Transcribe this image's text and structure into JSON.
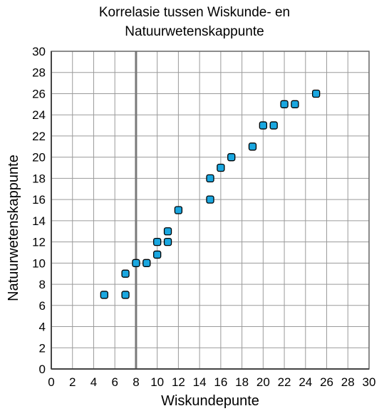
{
  "chart_data": {
    "type": "scatter",
    "title_lines": [
      "Korrelasie tussen Wiskunde- en",
      "Natuurwetenskappunte"
    ],
    "xlabel": "Wiskundepunte",
    "ylabel": "Natuurwetenskappunte",
    "xlim": [
      0,
      30
    ],
    "ylim": [
      0,
      30
    ],
    "xticks": [
      "0",
      "2",
      "4",
      "6",
      "8",
      "10",
      "12",
      "14",
      "16",
      "18",
      "20",
      "22",
      "24",
      "26",
      "28",
      "30"
    ],
    "yticks": [
      "0",
      "2",
      "4",
      "6",
      "8",
      "10",
      "12",
      "14",
      "16",
      "18",
      "20",
      "22",
      "24",
      "26",
      "28",
      "30"
    ],
    "grid": true,
    "reference_line_x": 8,
    "point_color": "#1aa7e0",
    "points": [
      {
        "x": 5,
        "y": 7
      },
      {
        "x": 7,
        "y": 7
      },
      {
        "x": 7,
        "y": 9
      },
      {
        "x": 8,
        "y": 10
      },
      {
        "x": 9,
        "y": 10
      },
      {
        "x": 10,
        "y": 10.8
      },
      {
        "x": 10,
        "y": 12
      },
      {
        "x": 11,
        "y": 12
      },
      {
        "x": 11,
        "y": 13
      },
      {
        "x": 12,
        "y": 15
      },
      {
        "x": 15,
        "y": 16
      },
      {
        "x": 15,
        "y": 18
      },
      {
        "x": 16,
        "y": 19
      },
      {
        "x": 17,
        "y": 20
      },
      {
        "x": 19,
        "y": 21
      },
      {
        "x": 20,
        "y": 23
      },
      {
        "x": 21,
        "y": 23
      },
      {
        "x": 22,
        "y": 25
      },
      {
        "x": 23,
        "y": 25
      },
      {
        "x": 25,
        "y": 26
      }
    ]
  }
}
